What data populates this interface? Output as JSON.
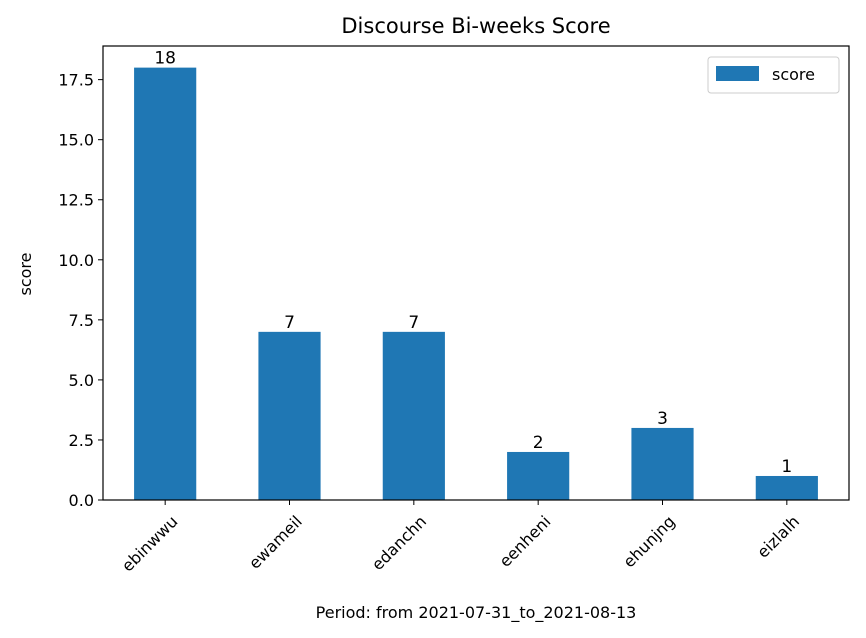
{
  "chart_data": {
    "type": "bar",
    "title": "Discourse Bi-weeks Score",
    "xlabel": "Period: from 2021-07-31_to_2021-08-13",
    "ylabel": "score",
    "categories": [
      "ebinwwu",
      "ewameil",
      "edanchn",
      "eenheni",
      "ehunjng",
      "eizlalh"
    ],
    "series": [
      {
        "name": "score",
        "values": [
          18,
          7,
          7,
          2,
          3,
          1
        ],
        "color": "#1f77b4"
      }
    ],
    "data_labels": [
      "18",
      "7",
      "7",
      "2",
      "3",
      "1"
    ],
    "ylim": [
      0,
      18.9
    ],
    "yticks": [
      0.0,
      2.5,
      5.0,
      7.5,
      10.0,
      12.5,
      15.0,
      17.5
    ],
    "ytick_labels": [
      "0.0",
      "2.5",
      "5.0",
      "7.5",
      "10.0",
      "12.5",
      "15.0",
      "17.5"
    ],
    "legend": {
      "position": "top-right",
      "entries": [
        "score"
      ]
    },
    "grid": false
  }
}
